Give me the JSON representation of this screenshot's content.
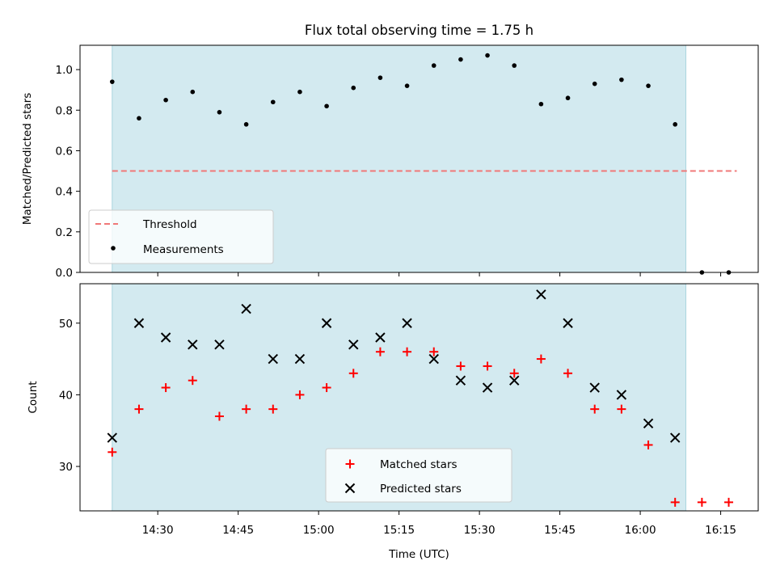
{
  "chart_data": [
    {
      "type": "scatter",
      "title": "Flux total observing time = 1.75 h",
      "xlabel": "",
      "ylabel": "Matched/Predicted stars",
      "ylim": [
        0,
        1.12
      ],
      "yticks": [
        0.0,
        0.2,
        0.4,
        0.6,
        0.8,
        1.0
      ],
      "ytick_labels": [
        "0.0",
        "0.2",
        "0.4",
        "0.6",
        "0.8",
        "1.0"
      ],
      "xlim_minutes": [
        855.5,
        982.0
      ],
      "shaded_interval_minutes": [
        861.5,
        968.5
      ],
      "shade_color": "#d3eaf0",
      "threshold": {
        "name": "Threshold",
        "value": 0.5,
        "x_start_minutes": 861.5,
        "x_end_minutes": 978.0,
        "color": "#f07878"
      },
      "series": [
        {
          "name": "Measurements",
          "marker": "dot",
          "color": "#000000",
          "x_minutes": [
            861.5,
            866.5,
            871.5,
            876.5,
            881.5,
            886.5,
            891.5,
            896.5,
            901.5,
            906.5,
            911.5,
            916.5,
            921.5,
            926.5,
            931.5,
            936.5,
            941.5,
            946.5,
            951.5,
            956.5,
            961.5,
            966.5,
            971.5,
            976.5
          ],
          "y": [
            0.94,
            0.76,
            0.85,
            0.89,
            0.79,
            0.73,
            0.84,
            0.89,
            0.82,
            0.91,
            0.96,
            0.92,
            1.02,
            1.05,
            1.07,
            1.02,
            0.83,
            0.86,
            0.93,
            0.95,
            0.92,
            0.73,
            0.0,
            0.0
          ]
        }
      ],
      "legend": {
        "placement": "lower-left"
      },
      "grid": false
    },
    {
      "type": "scatter",
      "title": "",
      "xlabel": "Time (UTC)",
      "ylabel": "Count",
      "ylim": [
        23.8,
        55.5
      ],
      "yticks": [
        30,
        40,
        50
      ],
      "ytick_labels": [
        "30",
        "40",
        "50"
      ],
      "xlim_minutes": [
        855.5,
        982.0
      ],
      "xticks_minutes": [
        870,
        885,
        900,
        915,
        930,
        945,
        960,
        975
      ],
      "xtick_labels": [
        "14:30",
        "14:45",
        "15:00",
        "15:15",
        "15:30",
        "15:45",
        "16:00",
        "16:15"
      ],
      "shaded_interval_minutes": [
        861.5,
        968.5
      ],
      "shade_color": "#d3eaf0",
      "series": [
        {
          "name": "Matched stars",
          "marker": "plus",
          "color": "#ff0000",
          "x_minutes": [
            861.5,
            866.5,
            871.5,
            876.5,
            881.5,
            886.5,
            891.5,
            896.5,
            901.5,
            906.5,
            911.5,
            916.5,
            921.5,
            926.5,
            931.5,
            936.5,
            941.5,
            946.5,
            951.5,
            956.5,
            961.5,
            966.5,
            971.5,
            976.5
          ],
          "y": [
            32,
            38,
            41,
            42,
            37,
            38,
            38,
            40,
            41,
            43,
            46,
            46,
            46,
            44,
            44,
            43,
            45,
            43,
            38,
            38,
            33,
            25,
            25,
            25
          ]
        },
        {
          "name": "Predicted stars",
          "marker": "x",
          "color": "#000000",
          "x_minutes": [
            861.5,
            866.5,
            871.5,
            876.5,
            881.5,
            886.5,
            891.5,
            896.5,
            901.5,
            906.5,
            911.5,
            916.5,
            921.5,
            926.5,
            931.5,
            936.5,
            941.5,
            946.5,
            951.5,
            956.5,
            961.5,
            966.5
          ],
          "y": [
            34,
            50,
            48,
            47,
            47,
            52,
            45,
            45,
            50,
            47,
            48,
            50,
            45,
            42,
            41,
            42,
            54,
            50,
            41,
            40,
            36,
            34
          ]
        }
      ],
      "legend": {
        "placement": "lower-center"
      },
      "grid": false
    }
  ]
}
